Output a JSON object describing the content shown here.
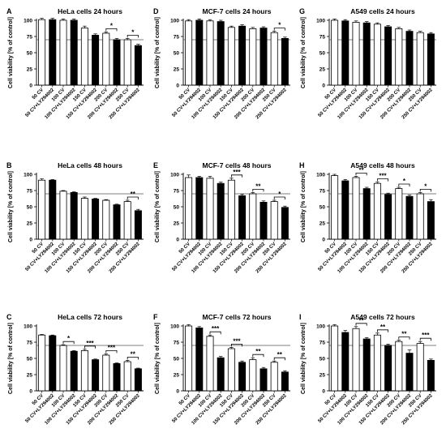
{
  "figure": {
    "ylabel": "Cell viability [% of control]",
    "yticks": [
      0,
      25,
      50,
      75,
      100
    ],
    "reference_line": 70
  },
  "categories": [
    "50 CV",
    "50 CV+LY294002",
    "100 CV",
    "100 CV+LY294002",
    "150 CV",
    "150 CV+LY294002",
    "200 CV",
    "200 CV+LY294002",
    "250 CV",
    "250 CV+LY294002"
  ],
  "colors": {
    "cv": "#ffffff",
    "cv_ly": "#000000",
    "axis": "#000000",
    "reference": "#555555"
  },
  "chart_data": [
    {
      "letter": "A",
      "title": "HeLa cells 24 hours",
      "type": "bar",
      "ylim": [
        0,
        100
      ],
      "ylabel": "Cell viability [% of control]",
      "values": [
        101,
        101,
        100,
        100,
        88,
        77,
        80,
        70,
        70,
        61
      ],
      "errors": [
        2,
        2,
        2,
        2,
        3,
        2,
        2,
        2,
        2,
        2
      ],
      "significance": [
        {
          "pair": 3,
          "label": "*"
        },
        {
          "pair": 4,
          "label": "*"
        }
      ]
    },
    {
      "letter": "D",
      "title": "MCF-7 cells 24 hours",
      "type": "bar",
      "ylim": [
        0,
        100
      ],
      "ylabel": "Cell viability [% of control]",
      "values": [
        99,
        100,
        99,
        98,
        89,
        91,
        87,
        88,
        81,
        72
      ],
      "errors": [
        2,
        2,
        2,
        2,
        2,
        2,
        2,
        2,
        2,
        2
      ],
      "significance": [
        {
          "pair": 4,
          "label": "*"
        }
      ]
    },
    {
      "letter": "G",
      "title": "A549 cells 24 hours",
      "type": "bar",
      "ylim": [
        0,
        100
      ],
      "ylabel": "Cell viability [% of control]",
      "values": [
        100,
        99,
        97,
        96,
        94,
        90,
        87,
        83,
        81,
        79
      ],
      "errors": [
        2,
        2,
        2,
        2,
        2,
        2,
        2,
        2,
        2,
        2
      ],
      "significance": []
    },
    {
      "letter": "B",
      "title": "HeLa cells 48 hours",
      "type": "bar",
      "ylim": [
        0,
        100
      ],
      "ylabel": "Cell viability [% of control]",
      "values": [
        91,
        91,
        74,
        72,
        63,
        62,
        60,
        53,
        58,
        44
      ],
      "errors": [
        2,
        1,
        1,
        1,
        2,
        1,
        1,
        1,
        2,
        2
      ],
      "significance": [
        {
          "pair": 4,
          "label": "**"
        }
      ]
    },
    {
      "letter": "E",
      "title": "MCF-7 cells 48 hours",
      "type": "bar",
      "ylim": [
        0,
        100
      ],
      "ylabel": "Cell viability [% of control]",
      "values": [
        95,
        95,
        94,
        86,
        91,
        67,
        70,
        57,
        58,
        49
      ],
      "errors": [
        4,
        2,
        3,
        2,
        3,
        2,
        2,
        2,
        2,
        2
      ],
      "significance": [
        {
          "pair": 2,
          "label": "***"
        },
        {
          "pair": 3,
          "label": "**"
        },
        {
          "pair": 4,
          "label": "*"
        }
      ]
    },
    {
      "letter": "H",
      "title": "A549 cells 48 hours",
      "type": "bar",
      "ylim": [
        0,
        100
      ],
      "ylabel": "Cell viability [% of control]",
      "values": [
        98,
        90,
        95,
        78,
        86,
        69,
        78,
        66,
        70,
        58
      ],
      "errors": [
        2,
        2,
        2,
        2,
        2,
        2,
        2,
        2,
        2,
        3
      ],
      "significance": [
        {
          "pair": 1,
          "label": "**"
        },
        {
          "pair": 2,
          "label": "***"
        },
        {
          "pair": 3,
          "label": "*"
        },
        {
          "pair": 4,
          "label": "*"
        }
      ]
    },
    {
      "letter": "C",
      "title": "HeLa cells 72 hours",
      "type": "bar",
      "ylim": [
        0,
        100
      ],
      "ylabel": "Cell viability [% of control]",
      "values": [
        86,
        85,
        70,
        61,
        62,
        48,
        55,
        42,
        45,
        34
      ],
      "errors": [
        1,
        1,
        1,
        1,
        2,
        1,
        2,
        1,
        2,
        1
      ],
      "significance": [
        {
          "pair": 1,
          "label": "*"
        },
        {
          "pair": 2,
          "label": "***"
        },
        {
          "pair": 3,
          "label": "***"
        },
        {
          "pair": 4,
          "label": "**"
        }
      ]
    },
    {
      "letter": "F",
      "title": "MCF-7 cells 72 hours",
      "type": "bar",
      "ylim": [
        0,
        100
      ],
      "ylabel": "Cell viability [% of control]",
      "values": [
        100,
        97,
        84,
        51,
        65,
        44,
        48,
        34,
        44,
        29
      ],
      "errors": [
        2,
        2,
        2,
        2,
        2,
        2,
        3,
        2,
        2,
        2
      ],
      "significance": [
        {
          "pair": 1,
          "label": "***"
        },
        {
          "pair": 2,
          "label": "***"
        },
        {
          "pair": 3,
          "label": "**"
        },
        {
          "pair": 4,
          "label": "**"
        }
      ]
    },
    {
      "letter": "I",
      "title": "A549 cells 72 hours",
      "type": "bar",
      "ylim": [
        0,
        100
      ],
      "ylabel": "Cell viability [% of control]",
      "values": [
        100,
        90,
        96,
        80,
        86,
        70,
        76,
        58,
        73,
        47
      ],
      "errors": [
        2,
        3,
        3,
        2,
        3,
        2,
        2,
        5,
        3,
        2
      ],
      "significance": [
        {
          "pair": 1,
          "label": "**"
        },
        {
          "pair": 2,
          "label": "**"
        },
        {
          "pair": 3,
          "label": "**"
        },
        {
          "pair": 4,
          "label": "***"
        }
      ]
    }
  ]
}
